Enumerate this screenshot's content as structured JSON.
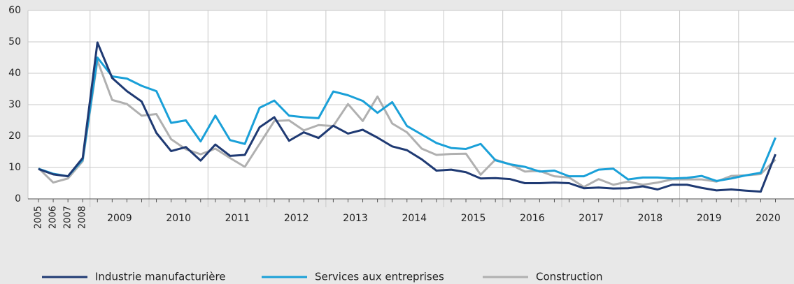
{
  "chart_data": {
    "type": "line",
    "categories": [
      "2005",
      "2006",
      "2007",
      "2008",
      "2009",
      null,
      null,
      null,
      "2010",
      null,
      null,
      null,
      "2011",
      null,
      null,
      null,
      "2012",
      null,
      null,
      null,
      "2013",
      null,
      null,
      null,
      "2014",
      null,
      null,
      null,
      "2015",
      null,
      null,
      null,
      "2016",
      null,
      null,
      null,
      "2017",
      null,
      null,
      null,
      "2018",
      null,
      null,
      null,
      "2019",
      null,
      null,
      null,
      "2020",
      null,
      null
    ],
    "series": [
      {
        "name": "Industrie manufacturière",
        "color": "#1f3a73",
        "values": [
          9.5,
          7.8,
          7.2,
          13,
          49.8,
          38.5,
          34.3,
          31,
          21,
          15.2,
          16.5,
          12.2,
          17.3,
          13.7,
          14,
          22.8,
          26,
          18.5,
          21.2,
          19.4,
          23.3,
          20.8,
          22,
          19.5,
          16.7,
          15.5,
          12.6,
          9,
          9.3,
          8.5,
          6.5,
          6.6,
          6.3,
          5,
          5,
          5.2,
          5,
          3.4,
          3.6,
          3.3,
          3.4,
          4,
          3,
          4.5,
          4.5,
          3.5,
          2.7,
          3,
          2.6,
          2.3,
          14.2
        ]
      },
      {
        "name": "Services aux entreprises",
        "color": "#1aa0d8",
        "values": [
          9.6,
          8,
          7.2,
          12.5,
          45,
          39,
          38.3,
          36,
          34.3,
          24.2,
          25,
          18.3,
          26.5,
          18.7,
          17.5,
          29,
          31.3,
          26.5,
          26,
          25.7,
          34.2,
          33,
          31.2,
          27.4,
          30.8,
          23.2,
          20.5,
          17.8,
          16.2,
          15.9,
          17.5,
          12.3,
          11,
          10.2,
          8.7,
          9,
          7.2,
          7.2,
          9.3,
          9.6,
          6.2,
          6.8,
          6.8,
          6.5,
          6.7,
          7.3,
          5.7,
          6.5,
          7.5,
          8.3,
          19.5
        ]
      },
      {
        "name": "Construction",
        "color": "#b0b0b0",
        "values": [
          9.8,
          5.2,
          6.5,
          12,
          44,
          31.5,
          30.2,
          26.5,
          27,
          19,
          15.8,
          14.2,
          16,
          13,
          10.2,
          17.5,
          24.8,
          25,
          21.8,
          23.5,
          23.2,
          30.2,
          24.8,
          32.6,
          24,
          21.2,
          16,
          14,
          14.3,
          14.4,
          7.7,
          12.5,
          11,
          8.7,
          8.9,
          7.2,
          6.8,
          3.8,
          6.3,
          4.5,
          5.5,
          4.5,
          5.2,
          6.2,
          6.2,
          6.2,
          5.5,
          7.3,
          7.5,
          7.9,
          12.5
        ]
      }
    ],
    "ylim": [
      0,
      60
    ],
    "yticks": [
      0,
      10,
      20,
      30,
      40,
      50,
      60
    ],
    "grid": true,
    "legend": "bottom"
  }
}
